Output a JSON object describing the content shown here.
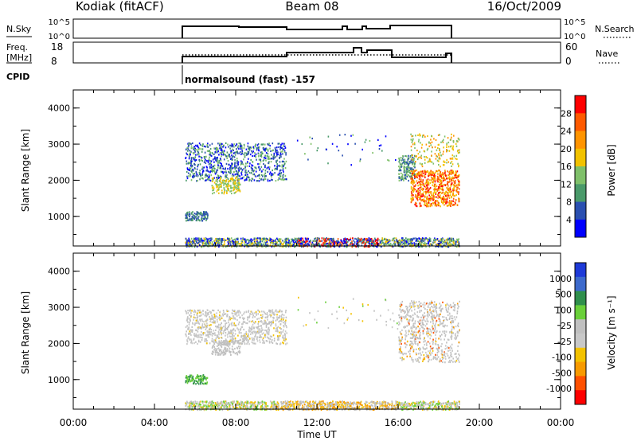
{
  "header": {
    "station": "Kodiak (fitACF)",
    "beam": "Beam 08",
    "date": "16/Oct/2009"
  },
  "top_panels": {
    "nsky_label": "N.Sky",
    "nsearch_label": "N.Search",
    "nsky_ticks": [
      "10^5",
      "10^0"
    ],
    "nsearch_ticks": [
      "10^5",
      "10^0"
    ],
    "freq_label": "Freq.",
    "freq_unit": "[MHz]",
    "freq_ticks": [
      "18",
      "8"
    ],
    "nave_label": "Nave",
    "nave_ticks": [
      "60",
      "0"
    ],
    "cpid_label": "CPID",
    "cpid_value": "normalsound (fast) -157"
  },
  "colors": {
    "power_scale": [
      "#0000ff",
      "#2a4fb0",
      "#4a9a6a",
      "#7fc06a",
      "#f2c200",
      "#ff9400",
      "#ff5a00",
      "#ff0000"
    ],
    "velocity_scale": [
      "#1e3ad8",
      "#3d6acc",
      "#2f8f4c",
      "#6ad03a",
      "#c0c0c0",
      "#c8c8c8",
      "#f3c200",
      "#f79a00",
      "#ff5000",
      "#ff0000"
    ]
  },
  "chart_data": [
    {
      "type": "heatmap",
      "quantity": "Power",
      "ylabel": "Slant Range [km]",
      "xlim_hours": [
        0,
        24
      ],
      "ylim_km": [
        180,
        4500
      ],
      "yticks": [
        "1000",
        "2000",
        "3000",
        "4000"
      ],
      "colorbar": {
        "label": "Power [dB]",
        "ticks": [
          "4",
          "8",
          "12",
          "16",
          "20",
          "24",
          "28"
        ]
      },
      "scatter_regions": [
        {
          "t_start": "05:30",
          "t_end": "19:00",
          "r_min_km": 180,
          "r_max_km": 400,
          "level": "mixed"
        },
        {
          "t_start": "05:30",
          "t_end": "10:30",
          "r_min_km": 1900,
          "r_max_km": 3100,
          "level": "medium"
        },
        {
          "t_start": "05:30",
          "t_end": "06:30",
          "r_min_km": 900,
          "r_max_km": 1200,
          "level": "low"
        },
        {
          "t_start": "16:00",
          "t_end": "19:00",
          "r_min_km": 1200,
          "r_max_km": 3300,
          "level": "high"
        }
      ]
    },
    {
      "type": "heatmap",
      "quantity": "Velocity",
      "ylabel": "Slant Range [km]",
      "xlabel": "Time UT",
      "xlim_hours": [
        0,
        24
      ],
      "ylim_km": [
        180,
        4500
      ],
      "yticks": [
        "1000",
        "2000",
        "3000",
        "4000"
      ],
      "xticks": [
        "00:00",
        "04:00",
        "08:00",
        "12:00",
        "16:00",
        "20:00",
        "00:00"
      ],
      "colorbar": {
        "label": "Velocity [m s⁻¹]",
        "ticks": [
          "1000",
          "500",
          "100",
          "25",
          "-25",
          "-100",
          "-500",
          "-1000"
        ]
      }
    }
  ]
}
